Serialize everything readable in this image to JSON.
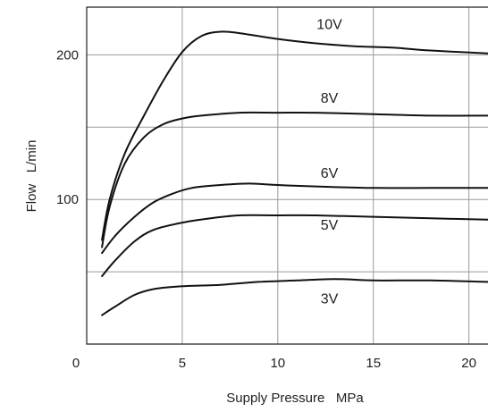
{
  "chart_data": {
    "type": "line",
    "title": "",
    "xlabel": "Supply Pressure   MPa",
    "ylabel": "Flow   L/min",
    "xlim": [
      0,
      21
    ],
    "ylim": [
      0,
      233
    ],
    "x_ticks": [
      {
        "value": 0,
        "label": "0"
      },
      {
        "value": 5,
        "label": "5"
      },
      {
        "value": 10,
        "label": "10"
      },
      {
        "value": 15,
        "label": "15"
      },
      {
        "value": 20,
        "label": "20"
      }
    ],
    "y_ticks": [
      {
        "value": 100,
        "label": "100"
      },
      {
        "value": 200,
        "label": "200"
      }
    ],
    "y_grid": [
      50,
      100,
      150,
      200
    ],
    "grid": true,
    "legend": "none",
    "series": [
      {
        "name": "10V",
        "label_pos": [
          12.7,
          218
        ],
        "points": [
          [
            0.8,
            72
          ],
          [
            1.2,
            100
          ],
          [
            2,
            132
          ],
          [
            3,
            158
          ],
          [
            4,
            182
          ],
          [
            5,
            202
          ],
          [
            6,
            213
          ],
          [
            7,
            216
          ],
          [
            8,
            215
          ],
          [
            10,
            211
          ],
          [
            12,
            208
          ],
          [
            14,
            206
          ],
          [
            16,
            205
          ],
          [
            18,
            203
          ],
          [
            21,
            201
          ]
        ]
      },
      {
        "name": "8V",
        "label_pos": [
          12.7,
          167
        ],
        "points": [
          [
            0.8,
            67
          ],
          [
            1.2,
            95
          ],
          [
            2,
            125
          ],
          [
            3,
            143
          ],
          [
            4,
            152
          ],
          [
            5,
            156
          ],
          [
            6,
            158
          ],
          [
            8,
            160
          ],
          [
            10,
            160
          ],
          [
            12,
            160
          ],
          [
            15,
            159
          ],
          [
            18,
            158
          ],
          [
            21,
            158
          ]
        ]
      },
      {
        "name": "6V",
        "label_pos": [
          12.7,
          115
        ],
        "points": [
          [
            0.8,
            63
          ],
          [
            1.5,
            75
          ],
          [
            2.5,
            88
          ],
          [
            3.5,
            98
          ],
          [
            4.5,
            104
          ],
          [
            5.5,
            108
          ],
          [
            7,
            110
          ],
          [
            8.5,
            111
          ],
          [
            10,
            110
          ],
          [
            12,
            109
          ],
          [
            15,
            108
          ],
          [
            18,
            108
          ],
          [
            21,
            108
          ]
        ]
      },
      {
        "name": "5V",
        "label_pos": [
          12.7,
          79
        ],
        "points": [
          [
            0.8,
            47
          ],
          [
            1.5,
            58
          ],
          [
            2.5,
            71
          ],
          [
            3.5,
            79
          ],
          [
            5,
            84
          ],
          [
            6.5,
            87
          ],
          [
            8,
            89
          ],
          [
            10,
            89
          ],
          [
            12,
            89
          ],
          [
            15,
            88
          ],
          [
            18,
            87
          ],
          [
            21,
            86
          ]
        ]
      },
      {
        "name": "3V",
        "label_pos": [
          12.7,
          28
        ],
        "points": [
          [
            0.8,
            20
          ],
          [
            1.5,
            26
          ],
          [
            2.5,
            34
          ],
          [
            3.5,
            38
          ],
          [
            5,
            40
          ],
          [
            7,
            41
          ],
          [
            9,
            43
          ],
          [
            11,
            44
          ],
          [
            13,
            45
          ],
          [
            15,
            44
          ],
          [
            18,
            44
          ],
          [
            21,
            43
          ]
        ]
      }
    ]
  }
}
